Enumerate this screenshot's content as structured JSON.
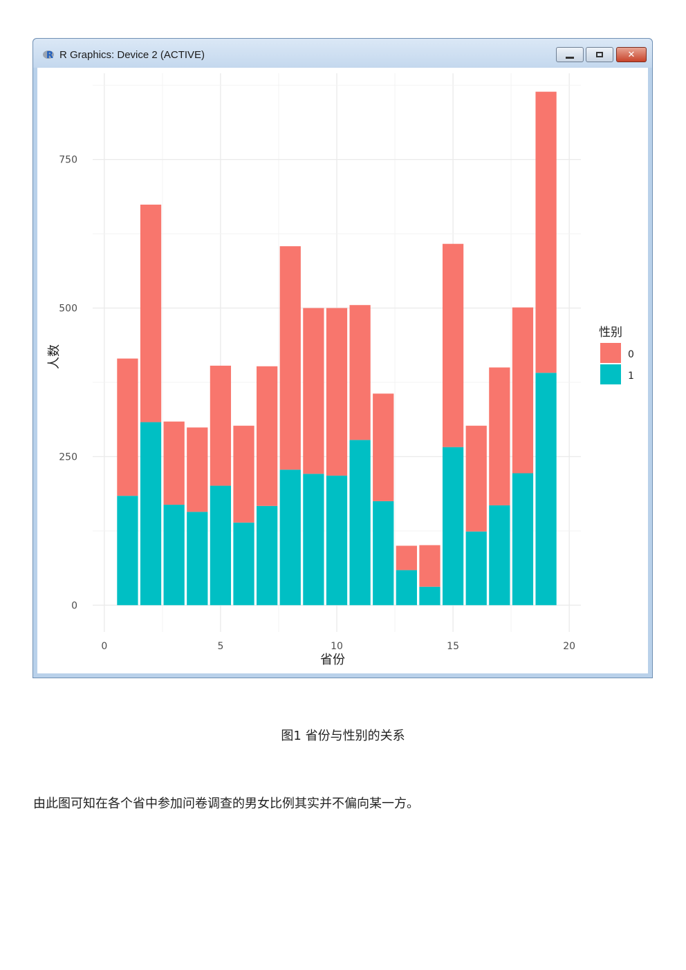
{
  "window": {
    "title": "R Graphics: Device 2 (ACTIVE)",
    "icon": "r-logo-icon",
    "controls": {
      "minimize": "minimize-icon",
      "maximize": "maximize-icon",
      "close": "close-icon"
    }
  },
  "caption": {
    "label": "图1 省份与性别的关系"
  },
  "body_text": "由此图可知在各个省中参加问卷调查的男女比例其实并不偏向某一方。",
  "colors": {
    "series0": "#f8766d",
    "series1": "#00bfc4",
    "grid": "#ebebeb",
    "axis_text": "#4d4d4d"
  },
  "chart_data": {
    "type": "bar",
    "stacked": true,
    "xlabel": "省份",
    "ylabel": "人数",
    "legend_title": "性别",
    "legend_position": "right",
    "grid": true,
    "xlim": [
      -0.5,
      20.5
    ],
    "ylim": [
      -45,
      895
    ],
    "x_ticks": [
      0,
      5,
      10,
      15,
      20
    ],
    "y_ticks": [
      0,
      250,
      500,
      750
    ],
    "x": [
      1,
      2,
      3,
      4,
      5,
      6,
      7,
      8,
      9,
      10,
      11,
      12,
      13,
      14,
      15,
      16,
      17,
      18,
      19
    ],
    "series": [
      {
        "name": "0",
        "color": "#f8766d",
        "values": [
          231,
          366,
          140,
          142,
          202,
          163,
          235,
          376,
          279,
          282,
          227,
          181,
          41,
          70,
          342,
          178,
          232,
          279,
          473
        ]
      },
      {
        "name": "1",
        "color": "#00bfc4",
        "values": [
          184,
          308,
          169,
          157,
          201,
          139,
          167,
          228,
          221,
          218,
          278,
          175,
          59,
          31,
          266,
          124,
          168,
          222,
          391
        ]
      }
    ]
  }
}
